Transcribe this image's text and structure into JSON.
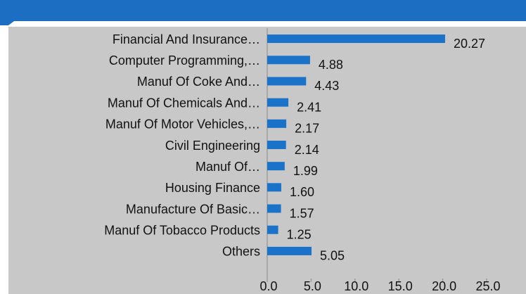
{
  "chart_data": {
    "type": "bar",
    "orientation": "horizontal",
    "categories": [
      "Financial And Insurance…",
      "Computer Programming,…",
      "Manuf Of Coke And…",
      "Manuf Of Chemicals And…",
      "Manuf Of Motor Vehicles,…",
      "Civil Engineering",
      "Manuf Of…",
      "Housing Finance",
      "Manufacture Of Basic…",
      "Manuf Of Tobacco Products",
      "Others"
    ],
    "values": [
      20.27,
      4.88,
      4.43,
      2.41,
      2.17,
      2.14,
      1.99,
      1.6,
      1.57,
      1.25,
      5.05
    ],
    "value_labels": [
      "20.27",
      "4.88",
      "4.43",
      "2.41",
      "2.17",
      "2.14",
      "1.99",
      "1.60",
      "1.57",
      "1.25",
      "5.05"
    ],
    "color": "#1a73c8",
    "xlim": [
      0,
      25
    ],
    "xticks": [
      {
        "value": 0,
        "label": "0.0"
      },
      {
        "value": 5,
        "label": "5.0"
      },
      {
        "value": 10,
        "label": "10.0"
      },
      {
        "value": 15,
        "label": "15.0"
      },
      {
        "value": 20,
        "label": "20.0"
      },
      {
        "value": 25,
        "label": "25.0"
      }
    ],
    "grid": false
  }
}
